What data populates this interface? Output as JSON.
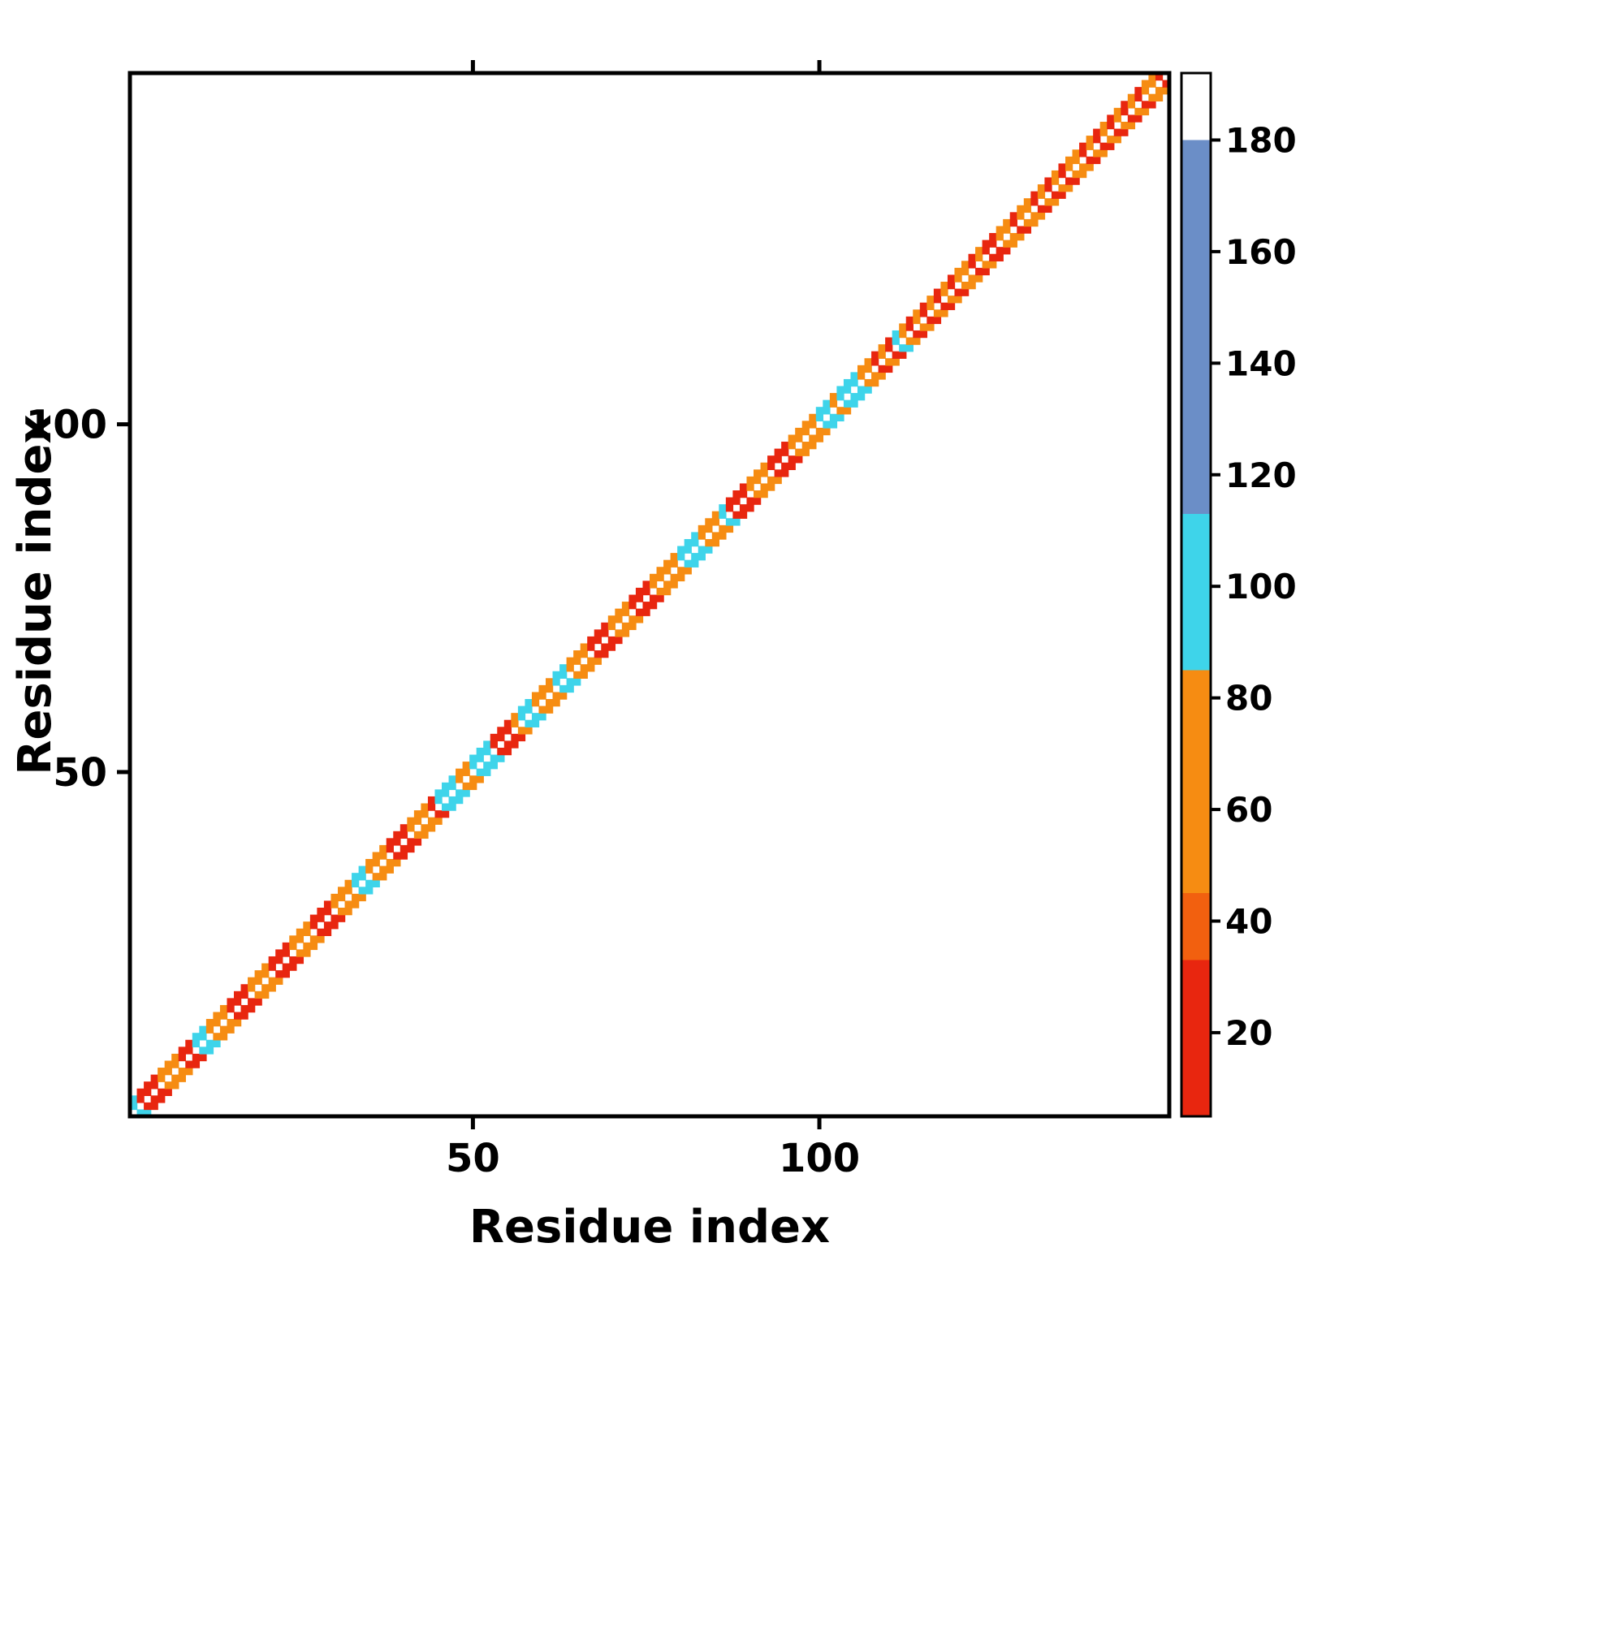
{
  "chart_data": {
    "type": "heatmap",
    "title": "",
    "xlabel": "Residue index",
    "ylabel": "Residue index",
    "n_residues": 150,
    "axis_range": [
      1,
      150
    ],
    "x_ticks": [
      50,
      100
    ],
    "y_ticks": [
      50,
      100
    ],
    "grid": false,
    "band_offsets": [
      1,
      2
    ],
    "diagonal_gap_color": "#ffffff",
    "background_color": "#ffffff",
    "frame_color": "#000000",
    "diagonal_values": [
      95,
      22,
      18,
      26,
      60,
      68,
      55,
      20,
      16,
      95,
      98,
      62,
      55,
      70,
      18,
      24,
      15,
      58,
      66,
      60,
      22,
      17,
      25,
      64,
      58,
      70,
      16,
      22,
      19,
      60,
      55,
      66,
      95,
      92,
      58,
      64,
      70,
      18,
      24,
      16,
      60,
      55,
      68,
      22,
      95,
      100,
      92,
      62,
      58,
      98,
      95,
      104,
      20,
      16,
      24,
      60,
      95,
      100,
      66,
      58,
      70,
      96,
      102,
      60,
      55,
      64,
      18,
      25,
      15,
      62,
      58,
      68,
      22,
      16,
      24,
      60,
      66,
      55,
      70,
      95,
      100,
      96,
      58,
      64,
      60,
      95,
      20,
      16,
      24,
      62,
      55,
      68,
      18,
      22,
      15,
      60,
      66,
      58,
      70,
      95,
      100,
      62,
      96,
      102,
      95,
      64,
      58,
      20,
      62,
      25,
      95,
      68,
      16,
      58,
      22,
      64,
      26,
      60,
      15,
      70,
      55,
      20,
      66,
      16,
      24,
      62,
      58,
      21,
      68,
      64,
      15,
      57,
      25,
      61,
      19,
      66,
      55,
      17,
      60,
      24,
      56,
      20,
      63,
      16,
      67,
      26,
      58,
      70,
      21,
      61
    ],
    "colorbar": {
      "min": 5,
      "max": 192,
      "ticks": [
        20,
        40,
        60,
        80,
        100,
        120,
        140,
        160,
        180
      ],
      "segments": [
        {
          "from": 5,
          "to": 33,
          "color": "#e8260f"
        },
        {
          "from": 33,
          "to": 45,
          "color": "#f2600f"
        },
        {
          "from": 45,
          "to": 85,
          "color": "#f68c12"
        },
        {
          "from": 85,
          "to": 113,
          "color": "#3ed4ea"
        },
        {
          "from": 113,
          "to": 180,
          "color": "#6b8ec7"
        },
        {
          "from": 180,
          "to": 192,
          "color": "#ffffff"
        }
      ]
    }
  }
}
